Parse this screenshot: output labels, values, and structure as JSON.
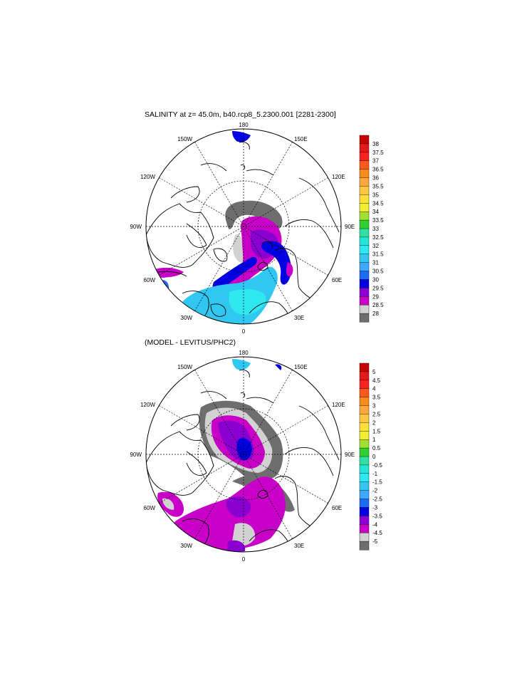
{
  "chart_data": [
    {
      "type": "heatmap",
      "title": "SALINITY at z=  45.0m, b40.rcp8_5.2300.001 [2281-2300]",
      "projection": "north polar stereographic",
      "lon_labels": [
        "180",
        "150E",
        "120E",
        "90E",
        "60E",
        "30E",
        "0",
        "30W",
        "60W",
        "90W",
        "120W",
        "150W"
      ],
      "colorbar": {
        "levels": [
          "38",
          "37.5",
          "37",
          "36.5",
          "36",
          "35.5",
          "35",
          "34.5",
          "34",
          "33.5",
          "33",
          "32.5",
          "32",
          "31.5",
          "31",
          "30.5",
          "30",
          "29.5",
          "29",
          "28.5",
          "28"
        ],
        "colors": [
          "#c80000",
          "#e31a1c",
          "#ff2020",
          "#ff5a1e",
          "#f98d1c",
          "#fba93a",
          "#ffc83c",
          "#ffe13c",
          "#f0f030",
          "#a0e030",
          "#30d030",
          "#30e0a0",
          "#22e6d8",
          "#30e8f0",
          "#30c8f0",
          "#3fa8ff",
          "#1a6cf0",
          "#0000e0",
          "#8a00d0",
          "#c800c8",
          "#d2d2d2",
          "#6e6e6e"
        ]
      }
    },
    {
      "type": "heatmap",
      "title": "(MODEL - LEVITUS/PHC2)",
      "projection": "north polar stereographic",
      "lon_labels": [
        "180",
        "150E",
        "120E",
        "90E",
        "60E",
        "30E",
        "0",
        "30W",
        "60W",
        "90W",
        "120W",
        "150W"
      ],
      "colorbar": {
        "levels": [
          "5",
          "4.5",
          "4",
          "3.5",
          "3",
          "2.5",
          "2",
          "1.5",
          "1",
          "0.5",
          "0",
          "-0.5",
          "-1",
          "-1.5",
          "-2",
          "-2.5",
          "-3",
          "-3.5",
          "-4",
          "-4.5",
          "-5"
        ],
        "colors": [
          "#c80000",
          "#e31a1c",
          "#ff2020",
          "#ff5a1e",
          "#f98d1c",
          "#fba93a",
          "#ffc83c",
          "#ffe13c",
          "#f0f030",
          "#a0e030",
          "#30d030",
          "#30e0a0",
          "#22e6d8",
          "#30e8f0",
          "#30c8f0",
          "#3fa8ff",
          "#1a6cf0",
          "#0000e0",
          "#8a00d0",
          "#c800c8",
          "#d2d2d2",
          "#6e6e6e"
        ]
      }
    }
  ]
}
